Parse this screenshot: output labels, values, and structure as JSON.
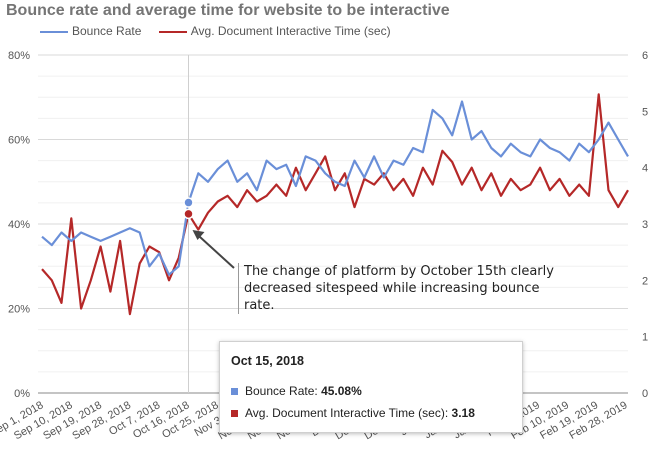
{
  "title": "Bounce rate and average time for website to be interactive",
  "colors": {
    "bounce": "#6a8fd8",
    "interactive": "#b52828",
    "grid": "#e6e6e6",
    "axis": "#555555"
  },
  "chart_data": {
    "type": "line",
    "title": "Bounce rate and average time for website to be interactive",
    "legend_position": "top-left",
    "grid": true,
    "x_tick_labels": [
      "Sep 1, 2018",
      "Sep 10, 2018",
      "Sep 19, 2018",
      "Sep 28, 2018",
      "Oct 7, 2018",
      "Oct 16, 2018",
      "Oct 25, 2018",
      "Nov 3, 2018",
      "Nov 12, 2018",
      "Nov 21, 2018",
      "Nov 30, 2018",
      "Dec 9, 2018",
      "Dec 18, 2018",
      "Dec 27, 2018",
      "Jan 5, 2019",
      "Jan 14, 2019",
      "Jan 23, 2019",
      "Feb 1, 2019",
      "Feb 10, 2019",
      "Feb 19, 2019",
      "Feb 28, 2019"
    ],
    "y_left": {
      "ticks": [
        "0%",
        "20%",
        "40%",
        "60%",
        "80%"
      ],
      "ylim": [
        0,
        80
      ]
    },
    "y_right": {
      "ticks": [
        "0",
        "1",
        "2",
        "3",
        "4",
        "5",
        "6"
      ],
      "ylim": [
        0,
        6
      ]
    },
    "x": [
      "Sep 1",
      "Sep 4",
      "Sep 7",
      "Sep 10",
      "Sep 13",
      "Sep 16",
      "Sep 19",
      "Sep 22",
      "Sep 25",
      "Sep 28",
      "Oct 1",
      "Oct 4",
      "Oct 7",
      "Oct 10",
      "Oct 13",
      "Oct 15",
      "Oct 18",
      "Oct 21",
      "Oct 25",
      "Oct 28",
      "Oct 31",
      "Nov 3",
      "Nov 6",
      "Nov 9",
      "Nov 12",
      "Nov 15",
      "Nov 18",
      "Nov 21",
      "Nov 24",
      "Nov 27",
      "Nov 30",
      "Dec 3",
      "Dec 6",
      "Dec 9",
      "Dec 12",
      "Dec 15",
      "Dec 18",
      "Dec 21",
      "Dec 24",
      "Dec 27",
      "Dec 30",
      "Jan 2",
      "Jan 5",
      "Jan 8",
      "Jan 11",
      "Jan 14",
      "Jan 17",
      "Jan 20",
      "Jan 23",
      "Jan 26",
      "Jan 29",
      "Feb 1",
      "Feb 4",
      "Feb 7",
      "Feb 10",
      "Feb 13",
      "Feb 16",
      "Feb 19",
      "Feb 22",
      "Feb 25",
      "Feb 28"
    ],
    "series": [
      {
        "name": "Bounce Rate",
        "axis": "left",
        "color": "#6a8fd8",
        "values": [
          37,
          35,
          38,
          36,
          38,
          37,
          36,
          37,
          38,
          39,
          38,
          30,
          33,
          28,
          30,
          45.08,
          52,
          50,
          53,
          55,
          50,
          52,
          48,
          55,
          53,
          54,
          49,
          56,
          55,
          52,
          50,
          49,
          55,
          51,
          56,
          51,
          55,
          54,
          58,
          57,
          67,
          65,
          61,
          69,
          60,
          62,
          58,
          56,
          59,
          57,
          56,
          60,
          58,
          57,
          55,
          59,
          57,
          60,
          64,
          60,
          56
        ]
      },
      {
        "name": "Avg. Document Interactive Time (sec)",
        "axis": "right",
        "color": "#b52828",
        "values": [
          2.2,
          2.0,
          1.6,
          3.1,
          1.5,
          2.0,
          2.6,
          1.8,
          2.7,
          1.4,
          2.3,
          2.6,
          2.5,
          2.0,
          2.4,
          3.18,
          2.9,
          3.2,
          3.4,
          3.5,
          3.3,
          3.6,
          3.4,
          3.5,
          3.7,
          3.5,
          4.0,
          3.6,
          3.9,
          4.2,
          3.6,
          3.9,
          3.3,
          3.8,
          3.7,
          3.9,
          3.6,
          3.8,
          3.5,
          4.0,
          3.7,
          4.3,
          4.1,
          3.7,
          4.0,
          3.6,
          3.9,
          3.5,
          3.8,
          3.6,
          3.7,
          4.0,
          3.6,
          3.8,
          3.5,
          3.7,
          3.5,
          5.3,
          3.6,
          3.3,
          3.6
        ]
      }
    ],
    "highlight": {
      "x": "Oct 15"
    },
    "annotation": "The change of platform by October 15th clearly decreased sitespeed while increasing bounce rate."
  },
  "tooltip": {
    "date": "Oct 15, 2018",
    "bounce_label": "Bounce Rate: ",
    "bounce_value": "45.08%",
    "interactive_label": "Avg. Document Interactive Time (sec): ",
    "interactive_value": "3.18"
  }
}
